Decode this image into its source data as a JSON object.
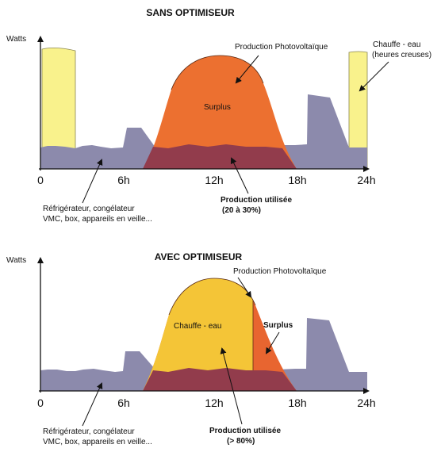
{
  "colors": {
    "consumption": "#8c8aac",
    "solar": "#ec7030",
    "used": "#923c4c",
    "heater": "#f9f28c",
    "heater_optimized": "#f4c537",
    "surplus_optimized": "#e86530"
  },
  "panel_top": {
    "title": "SANS  OPTIMISEUR",
    "y_label": "Watts",
    "ticks": [
      "0",
      "6h",
      "12h",
      "18h",
      "24h"
    ],
    "annotations": {
      "production": "Production Photovoltaïque",
      "surplus": "Surplus",
      "heater_line1": "Chauffe - eau",
      "heater_line2": "(heures creuses)",
      "appliances_line1": "Réfrigérateur, congélateur",
      "appliances_line2": "VMC, box, appareils en veille...",
      "used_line1": "Production utilisée",
      "used_line2": "(20 à 30%)"
    }
  },
  "panel_bottom": {
    "title": "AVEC  OPTIMISEUR",
    "y_label": "Watts",
    "ticks": [
      "0",
      "6h",
      "12h",
      "18h",
      "24h"
    ],
    "annotations": {
      "production": "Production Photovoltaïque",
      "heater": "Chauffe - eau",
      "surplus": "Surplus",
      "appliances_line1": "Réfrigérateur, congélateur",
      "appliances_line2": "VMC, box, appareils en veille...",
      "used_line1": "Production utilisée",
      "used_line2": "(> 80%)"
    }
  }
}
